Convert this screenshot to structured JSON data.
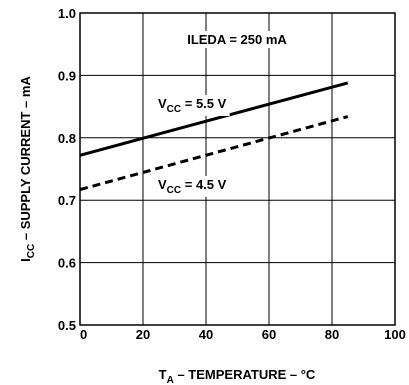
{
  "chart_data": {
    "type": "line",
    "title": "",
    "xlabel": {
      "main": "T",
      "sub": "A",
      "rest": " – TEMPERATURE – °C"
    },
    "ylabel": {
      "main": "I",
      "sub": "CC",
      "rest": " – SUPPLY CURRENT – mA"
    },
    "xlim": [
      0,
      100
    ],
    "ylim": [
      0.5,
      1.0
    ],
    "x_ticks": [
      0,
      20,
      40,
      60,
      80,
      100
    ],
    "x_tick_labels": [
      "0",
      "20",
      "40",
      "60",
      "80",
      "100"
    ],
    "y_ticks": [
      0.5,
      0.6,
      0.7,
      0.8,
      0.9,
      1.0
    ],
    "y_tick_labels": [
      "0.5",
      "0.6",
      "0.7",
      "0.8",
      "0.9",
      "1.0"
    ],
    "grid": true,
    "annotations": [
      {
        "text": "ILEDA = 250 mA"
      }
    ],
    "series": [
      {
        "label_main": "V",
        "label_sub": "CC",
        "label_rest": " = 5.5 V",
        "style": "solid",
        "x": [
          0,
          85
        ],
        "y": [
          0.772,
          0.888
        ]
      },
      {
        "label_main": "V",
        "label_sub": "CC",
        "label_rest": " = 4.5 V",
        "style": "dashed",
        "x": [
          0,
          85
        ],
        "y": [
          0.717,
          0.834
        ]
      }
    ]
  }
}
